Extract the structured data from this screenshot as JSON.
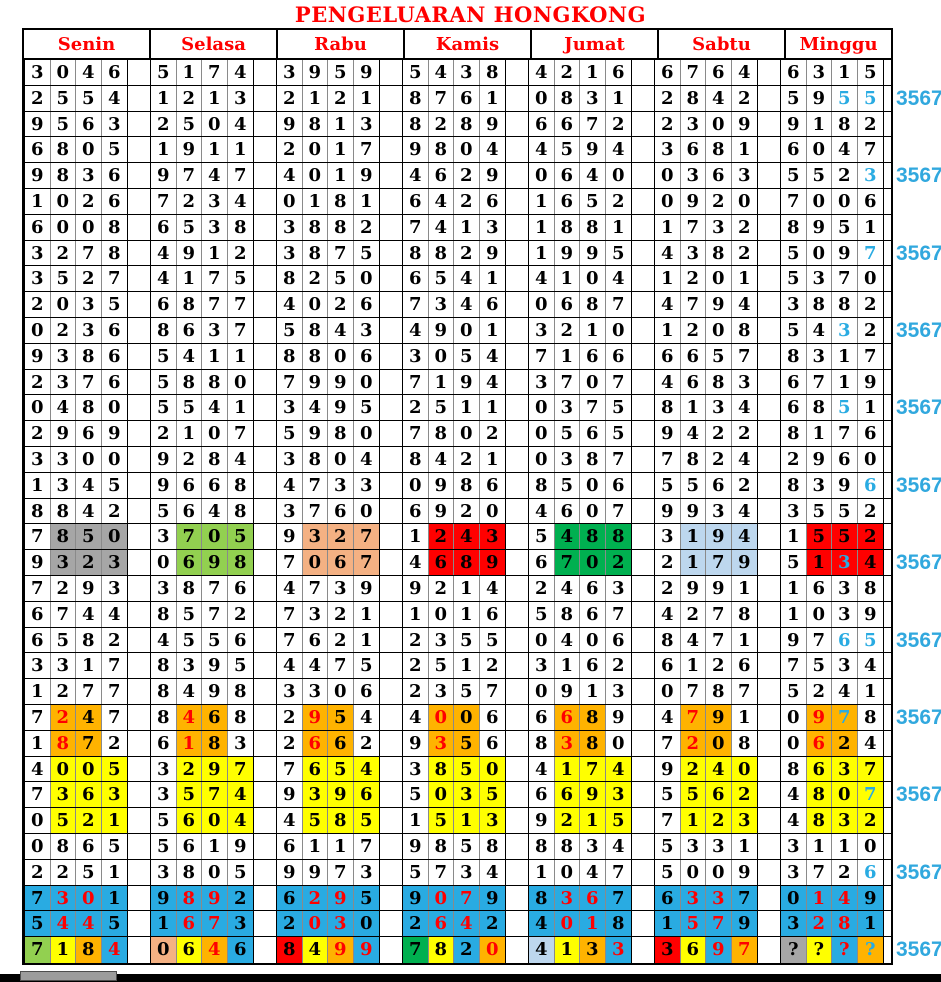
{
  "title": "PENGELUARAN HONGKONG",
  "marker_label": "3567",
  "days": [
    "Senin",
    "Selasa",
    "Rabu",
    "Kamis",
    "Jumat",
    "Sabtu",
    "Minggu"
  ],
  "colors": {
    "accent_red": "#FF0000",
    "accent_cyan": "#29ABE2",
    "bg": {
      ".": "#FFFFFF",
      "G": "#A6A6A6",
      "L": "#92D050",
      "P": "#F4B183",
      "R": "#FF0000",
      "N": "#00B050",
      "B": "#BDD7EE",
      "O": "#FFB300",
      "Y": "#FFFF00",
      "U": "#29ABE2"
    },
    "fg": {
      "k": "#000000",
      "r": "#FF0000",
      "c": "#29ABE2"
    }
  },
  "rows": [
    {
      "cells": [
        "3046",
        "5174",
        "3959",
        "5438",
        "4216",
        "6764",
        "6315"
      ]
    },
    {
      "m": true,
      "cells": [
        "2554",
        "1213",
        "2121",
        "8761",
        "0831",
        "2842",
        {
          "v": "5955",
          "fg": "kkcc"
        }
      ]
    },
    {
      "cells": [
        "9563",
        "2504",
        "9813",
        "8289",
        "6672",
        "2309",
        "9182"
      ]
    },
    {
      "cells": [
        "6805",
        "1911",
        "2017",
        "9804",
        "4594",
        "3681",
        "6047"
      ]
    },
    {
      "m": true,
      "cells": [
        "9836",
        "9747",
        "4019",
        "4629",
        "0640",
        "0363",
        {
          "v": "5523",
          "fg": "kkkc"
        }
      ]
    },
    {
      "cells": [
        "1026",
        "7234",
        "0181",
        "6426",
        "1652",
        "0920",
        "7006"
      ]
    },
    {
      "cells": [
        "6008",
        "6538",
        "3882",
        "7413",
        "1881",
        "1732",
        "8951"
      ]
    },
    {
      "m": true,
      "cells": [
        "3278",
        "4912",
        "3875",
        "8829",
        "1995",
        "4382",
        {
          "v": "5097",
          "fg": "kkkc"
        }
      ]
    },
    {
      "cells": [
        "3527",
        "4175",
        "8250",
        "6541",
        "4104",
        "1201",
        "5370"
      ]
    },
    {
      "cells": [
        "2035",
        "6877",
        "4026",
        "7346",
        "0687",
        "4794",
        "3882"
      ]
    },
    {
      "m": true,
      "cells": [
        "0236",
        "8637",
        "5843",
        "4901",
        "3210",
        "1208",
        {
          "v": "5432",
          "fg": "kkck"
        }
      ]
    },
    {
      "cells": [
        "9386",
        "5411",
        "8806",
        "3054",
        "7166",
        "6657",
        "8317"
      ]
    },
    {
      "cells": [
        "2376",
        "5880",
        "7990",
        "7194",
        "3707",
        "4683",
        "6719"
      ]
    },
    {
      "m": true,
      "cells": [
        "0480",
        "5541",
        "3495",
        "2511",
        "0375",
        "8134",
        {
          "v": "6851",
          "fg": "kkck"
        }
      ]
    },
    {
      "cells": [
        "2969",
        "2107",
        "5980",
        "7802",
        "0565",
        "9422",
        "8176"
      ]
    },
    {
      "cells": [
        "3300",
        "9284",
        "3804",
        "8421",
        "0387",
        "7824",
        "2960"
      ]
    },
    {
      "m": true,
      "cells": [
        "1345",
        "9668",
        "4733",
        "0986",
        "8506",
        "5562",
        {
          "v": "8396",
          "fg": "kkkc"
        }
      ]
    },
    {
      "cells": [
        "8842",
        "5648",
        "3760",
        "6920",
        "4607",
        "9934",
        "3552"
      ]
    },
    {
      "cells": [
        {
          "v": "7850",
          "bg": ".GGG"
        },
        {
          "v": "3705",
          "bg": ".LLL"
        },
        {
          "v": "9327",
          "bg": ".PPP"
        },
        {
          "v": "1243",
          "bg": ".RRR"
        },
        {
          "v": "5488",
          "bg": ".NNN"
        },
        {
          "v": "3194",
          "bg": ".BBB"
        },
        {
          "v": "1552",
          "bg": ".RRR"
        }
      ]
    },
    {
      "m": true,
      "cells": [
        {
          "v": "9323",
          "bg": ".GGG"
        },
        {
          "v": "0698",
          "bg": ".LLL"
        },
        {
          "v": "7067",
          "bg": ".PPP"
        },
        {
          "v": "4689",
          "bg": ".RRR"
        },
        {
          "v": "6702",
          "bg": ".NNN"
        },
        {
          "v": "2179",
          "bg": ".BBB"
        },
        {
          "v": "5134",
          "bg": ".RRR",
          "fg": "kkck"
        }
      ]
    },
    {
      "cells": [
        "7293",
        "3876",
        "4739",
        "9214",
        "2463",
        "2991",
        "1638"
      ]
    },
    {
      "cells": [
        "6744",
        "8572",
        "7321",
        "1016",
        "5867",
        "4278",
        "1039"
      ]
    },
    {
      "m": true,
      "cells": [
        "6582",
        "4556",
        "7621",
        "2355",
        "0406",
        "8471",
        {
          "v": "9765",
          "fg": "kkcc"
        }
      ]
    },
    {
      "cells": [
        "3317",
        "8395",
        "4475",
        "2512",
        "3162",
        "6126",
        "7534"
      ]
    },
    {
      "cells": [
        "1277",
        "8498",
        "3306",
        "2357",
        "0913",
        "0787",
        "5241"
      ]
    },
    {
      "m": true,
      "cells": [
        {
          "v": "7247",
          "bg": ".OO.",
          "fg": "krkk"
        },
        {
          "v": "8468",
          "bg": ".OO.",
          "fg": "krkk"
        },
        {
          "v": "2954",
          "bg": ".OO.",
          "fg": "krkk"
        },
        {
          "v": "4006",
          "bg": ".OO.",
          "fg": "krkk"
        },
        {
          "v": "6689",
          "bg": ".OO.",
          "fg": "krkk"
        },
        {
          "v": "4791",
          "bg": ".OO.",
          "fg": "krkk"
        },
        {
          "v": "0978",
          "bg": ".OO.",
          "fg": "krck"
        }
      ]
    },
    {
      "cells": [
        {
          "v": "1872",
          "bg": ".OO.",
          "fg": "krkk"
        },
        {
          "v": "6183",
          "bg": ".OO.",
          "fg": "krkk"
        },
        {
          "v": "2662",
          "bg": ".OO.",
          "fg": "krkk"
        },
        {
          "v": "9356",
          "bg": ".OO.",
          "fg": "krkk"
        },
        {
          "v": "8380",
          "bg": ".OO.",
          "fg": "krkk"
        },
        {
          "v": "7208",
          "bg": ".OO.",
          "fg": "krkk"
        },
        {
          "v": "0624",
          "bg": ".OO.",
          "fg": "krkk"
        }
      ]
    },
    {
      "cells": [
        {
          "v": "4005",
          "bg": ".YYY"
        },
        {
          "v": "3297",
          "bg": ".YYY"
        },
        {
          "v": "7654",
          "bg": ".YYY"
        },
        {
          "v": "3850",
          "bg": ".YYY"
        },
        {
          "v": "4174",
          "bg": ".YYY"
        },
        {
          "v": "9240",
          "bg": ".YYY"
        },
        {
          "v": "8637",
          "bg": ".YYY"
        }
      ]
    },
    {
      "m": true,
      "cells": [
        {
          "v": "7363",
          "bg": ".YYY"
        },
        {
          "v": "3574",
          "bg": ".YYY"
        },
        {
          "v": "9396",
          "bg": ".YYY"
        },
        {
          "v": "5035",
          "bg": ".YYY"
        },
        {
          "v": "6693",
          "bg": ".YYY"
        },
        {
          "v": "5562",
          "bg": ".YYY"
        },
        {
          "v": "4807",
          "bg": ".YYY",
          "fg": "kkkc"
        }
      ]
    },
    {
      "cells": [
        {
          "v": "0521",
          "bg": ".YYY"
        },
        {
          "v": "5604",
          "bg": ".YYY"
        },
        {
          "v": "4585",
          "bg": ".YYY"
        },
        {
          "v": "1513",
          "bg": ".YYY"
        },
        {
          "v": "9215",
          "bg": ".YYY"
        },
        {
          "v": "7123",
          "bg": ".YYY"
        },
        {
          "v": "4832",
          "bg": ".YYY"
        }
      ]
    },
    {
      "cells": [
        "0865",
        "5619",
        "6117",
        "9858",
        "8834",
        "5331",
        "3110"
      ]
    },
    {
      "m": true,
      "cells": [
        "2251",
        "3805",
        "9973",
        "5734",
        "1047",
        "5009",
        {
          "v": "3726",
          "fg": "kkkc"
        }
      ]
    },
    {
      "cells": [
        {
          "v": "7301",
          "bg": "UUUU",
          "fg": "krrk"
        },
        {
          "v": "9892",
          "bg": "UUUU",
          "fg": "krrk"
        },
        {
          "v": "6295",
          "bg": "UUUU",
          "fg": "krrk"
        },
        {
          "v": "9079",
          "bg": "UUUU",
          "fg": "krrk"
        },
        {
          "v": "8367",
          "bg": "UUUU",
          "fg": "krrk"
        },
        {
          "v": "6337",
          "bg": "UUUU",
          "fg": "krrk"
        },
        {
          "v": "0149",
          "bg": "UUUU",
          "fg": "krrk"
        }
      ]
    },
    {
      "cells": [
        {
          "v": "5445",
          "bg": "UUUU",
          "fg": "krrk"
        },
        {
          "v": "1673",
          "bg": "UUUU",
          "fg": "krrk"
        },
        {
          "v": "2030",
          "bg": "UUUU",
          "fg": "krrk"
        },
        {
          "v": "2642",
          "bg": "UUUU",
          "fg": "krrk"
        },
        {
          "v": "4018",
          "bg": "UUUU",
          "fg": "krrk"
        },
        {
          "v": "1579",
          "bg": "UUUU",
          "fg": "krrk"
        },
        {
          "v": "3281",
          "bg": "UUUU",
          "fg": "krrk"
        }
      ]
    },
    {
      "m": true,
      "cells": [
        {
          "v": "7184",
          "bg": "LYOU",
          "fg": "kkkr"
        },
        {
          "v": "0646",
          "bg": "PYOU",
          "fg": "kkrk"
        },
        {
          "v": "8499",
          "bg": "RYOU",
          "fg": "kkrr"
        },
        {
          "v": "7820",
          "bg": "NYUO",
          "fg": "kkkr"
        },
        {
          "v": "4133",
          "bg": "BYOU",
          "fg": "kkkr"
        },
        {
          "v": "3697",
          "bg": "RYUO",
          "fg": "kkrr"
        },
        {
          "v": "????",
          "bg": "GYUO",
          "fg": "kkrc"
        }
      ]
    }
  ]
}
